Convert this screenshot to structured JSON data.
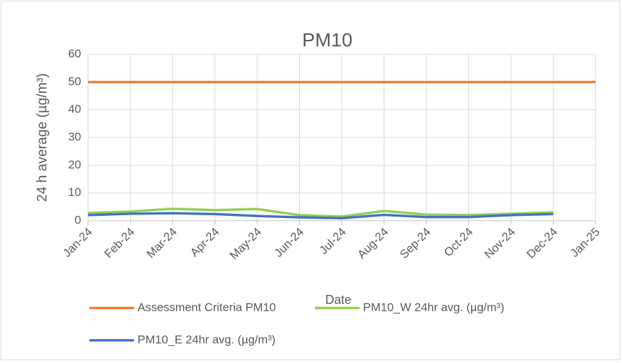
{
  "chart_data": {
    "type": "line",
    "title": "PM10",
    "x_label": "Date",
    "y_label": "24 h average (µg/m³)",
    "categories": [
      "Jan-24",
      "Feb-24",
      "Mar-24",
      "Apr-24",
      "May-24",
      "Jun-24",
      "Jul-24",
      "Aug-24",
      "Sep-24",
      "Oct-24",
      "Nov-24",
      "Dec-24",
      "Jan-25"
    ],
    "series": [
      {
        "name": "Assessment Criteria PM10",
        "color": "#ed7d31",
        "values": [
          50,
          50,
          50,
          50,
          50,
          50,
          50,
          50,
          50,
          50,
          50,
          50,
          50
        ]
      },
      {
        "name": "PM10_W 24hr avg. (µg/m³)",
        "color": "#92d050",
        "values": [
          2.8,
          3.3,
          4.3,
          3.8,
          4.2,
          2.0,
          1.5,
          3.5,
          2.2,
          2.0,
          2.5,
          3.0,
          null
        ]
      },
      {
        "name": "PM10_E 24hr avg. (µg/m³)",
        "color": "#4472c4",
        "values": [
          2.0,
          2.5,
          2.7,
          2.4,
          1.7,
          1.2,
          0.9,
          2.1,
          1.3,
          1.3,
          2.0,
          2.4,
          null
        ]
      }
    ],
    "ylim": [
      0,
      60
    ],
    "yticks": [
      0,
      10,
      20,
      30,
      40,
      50,
      60
    ],
    "grid": true,
    "legend": "bottom"
  }
}
